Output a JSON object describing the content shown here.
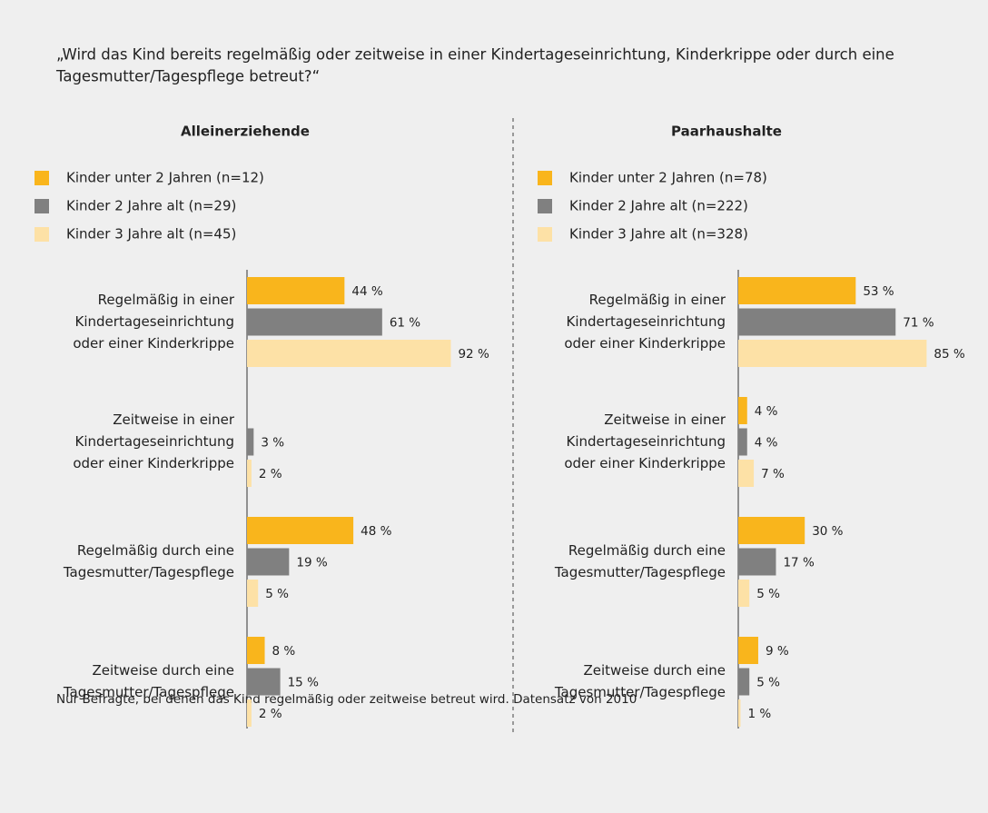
{
  "question": [
    "„Wird das Kind bereits regelmäßig oder zeitweise in einer Kindertageseinrichtung, Kinderkrippe oder durch eine",
    "Tagesmutter/Tagespflege betreut?“"
  ],
  "note": "Nur Befragte, bei denen das Kind regelmäßig oder zeitweise betreut wird. Datensatz von 2010",
  "chart_data": [
    {
      "type": "barh",
      "title": "Alleinerziehende",
      "categories": [
        [
          "Regelmäßig in einer",
          "Kindertageseinrichtung",
          "oder einer Kinderkrippe"
        ],
        [
          "Zeitweise in einer",
          "Kindertageseinrichtung",
          "oder einer Kinderkrippe"
        ],
        [
          "Regelmäßig durch eine",
          "Tagesmutter/Tagespflege"
        ],
        [
          "Zeitweise durch eine",
          "Tagesmutter/Tagespflege"
        ]
      ],
      "series": [
        {
          "name": "Kinder unter 2 Jahren (n=12)",
          "color": "#f9b51c",
          "values": [
            44,
            null,
            48,
            8
          ],
          "value_labels": [
            "44 %",
            null,
            "48 %",
            "8 %"
          ]
        },
        {
          "name": "Kinder 2 Jahre alt (n=29)",
          "color": "#808080",
          "values": [
            61,
            3,
            19,
            15
          ],
          "value_labels": [
            "61 %",
            "3 %",
            "19 %",
            "15 %"
          ]
        },
        {
          "name": "Kinder 3 Jahre alt (n=45)",
          "color": "#fde1a6",
          "values": [
            92,
            2,
            5,
            2
          ],
          "value_labels": [
            "92 %",
            "2 %",
            "5 %",
            "2 %"
          ]
        }
      ]
    },
    {
      "type": "barh",
      "title": "Paarhaushalte",
      "categories": [
        [
          "Regelmäßig in einer",
          "Kindertageseinrichtung",
          "oder einer Kinderkrippe"
        ],
        [
          "Zeitweise in einer",
          "Kindertageseinrichtung",
          "oder einer Kinderkrippe"
        ],
        [
          "Regelmäßig durch eine",
          "Tagesmutter/Tagespflege"
        ],
        [
          "Zeitweise durch eine",
          "Tagesmutter/Tagespflege"
        ]
      ],
      "series": [
        {
          "name": "Kinder unter 2 Jahren (n=78)",
          "color": "#f9b51c",
          "values": [
            53,
            4,
            30,
            9
          ],
          "value_labels": [
            "53 %",
            "4 %",
            "30 %",
            "9 %"
          ]
        },
        {
          "name": "Kinder 2 Jahre alt (n=222)",
          "color": "#808080",
          "values": [
            71,
            4,
            17,
            5
          ],
          "value_labels": [
            "71 %",
            "4 %",
            "17 %",
            "5 %"
          ]
        },
        {
          "name": "Kinder 3 Jahre alt (n=328)",
          "color": "#fde1a6",
          "values": [
            85,
            7,
            5,
            1
          ],
          "value_labels": [
            "85 %",
            "7 %",
            "5 %",
            "1 %"
          ]
        }
      ]
    }
  ]
}
